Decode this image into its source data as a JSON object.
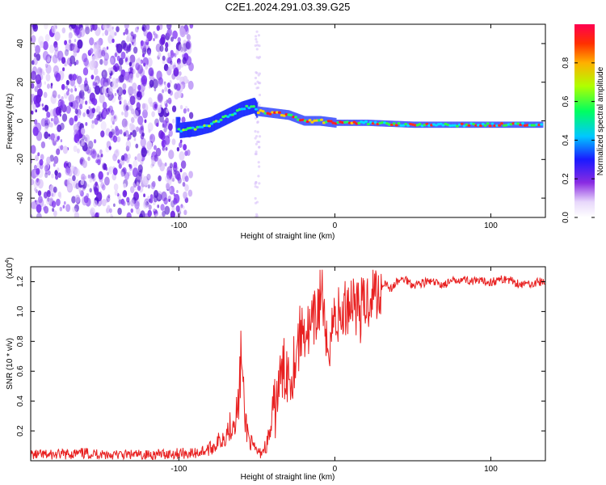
{
  "title": "C2E1.2024.291.03.39.G25",
  "colors": {
    "snr_line": "#e82020",
    "frame": "#000000",
    "spectrum_dot": "#6a1fe0"
  },
  "chart_data": [
    {
      "type": "heatmap",
      "xlabel": "Height of straight line (km)",
      "ylabel": "Frequency (Hz)",
      "xlim": [
        -195,
        135
      ],
      "ylim": [
        -50,
        50
      ],
      "x_ticks": [
        -100,
        0,
        100
      ],
      "x_tick_labels": [
        "-100",
        "0",
        "100"
      ],
      "y_ticks": [
        -40,
        -20,
        0,
        20,
        40
      ],
      "y_tick_labels": [
        "-40",
        "-20",
        "0",
        "20",
        "40"
      ],
      "grid": false,
      "colorbar": {
        "label": "Normalized spectral amplitude",
        "range": [
          0,
          1
        ],
        "ticks": [
          0,
          0.2,
          0.4,
          0.6,
          0.8
        ],
        "tick_labels": [
          "0.0",
          "0.2",
          "0.4",
          "0.6",
          "0.8"
        ],
        "colormap": "rainbow"
      },
      "center_track": [
        {
          "x": -100,
          "y": -5
        },
        {
          "x": -90,
          "y": -4
        },
        {
          "x": -80,
          "y": -2
        },
        {
          "x": -70,
          "y": 2
        },
        {
          "x": -60,
          "y": 6
        },
        {
          "x": -52,
          "y": 8
        },
        {
          "x": -50,
          "y": 5
        },
        {
          "x": -40,
          "y": 4
        },
        {
          "x": -30,
          "y": 3
        },
        {
          "x": -20,
          "y": 0
        },
        {
          "x": -10,
          "y": 0
        },
        {
          "x": 0,
          "y": -1
        },
        {
          "x": 20,
          "y": -1
        },
        {
          "x": 50,
          "y": -2
        },
        {
          "x": 80,
          "y": -2
        },
        {
          "x": 100,
          "y": -2
        },
        {
          "x": 133,
          "y": -2
        }
      ]
    },
    {
      "type": "line",
      "xlabel": "Height of straight line (km)",
      "ylabel": "SNR (10 * v/v)",
      "y_multiplier": "(x10",
      "y_multiplier_exp": "4",
      "xlim": [
        -195,
        135
      ],
      "ylim": [
        0.0,
        1.3
      ],
      "x_ticks": [
        -100,
        0,
        100
      ],
      "x_tick_labels": [
        "-100",
        "0",
        "100"
      ],
      "y_ticks": [
        0.2,
        0.4,
        0.6,
        0.8,
        1.0,
        1.2
      ],
      "y_tick_labels": [
        "0.2",
        "0.4",
        "0.6",
        "0.8",
        "1.0",
        "1.2"
      ],
      "grid": false,
      "series": [
        {
          "x": [
            -195,
            -180,
            -160,
            -140,
            -120,
            -100,
            -90,
            -80,
            -72,
            -66,
            -62,
            -60,
            -58,
            -55,
            -52,
            -48,
            -44,
            -40,
            -36,
            -32,
            -28,
            -24,
            -20,
            -16,
            -12,
            -8,
            -6,
            -3,
            0,
            4,
            8,
            12,
            16,
            20,
            24,
            28,
            32,
            36,
            40,
            45,
            50,
            60,
            70,
            80,
            90,
            100,
            110,
            120,
            133
          ],
          "y": [
            0.04,
            0.04,
            0.05,
            0.04,
            0.04,
            0.05,
            0.05,
            0.08,
            0.15,
            0.25,
            0.35,
            0.72,
            0.3,
            0.15,
            0.08,
            0.05,
            0.1,
            0.25,
            0.5,
            0.62,
            0.58,
            0.78,
            0.9,
            0.85,
            0.95,
            1.2,
            0.7,
            0.85,
            0.98,
            0.95,
            1.05,
            1.1,
            1.0,
            1.05,
            1.15,
            1.12,
            1.2,
            1.15,
            1.2,
            1.22,
            1.18,
            1.2,
            1.18,
            1.22,
            1.2,
            1.2,
            1.22,
            1.18,
            1.2
          ]
        }
      ]
    }
  ]
}
